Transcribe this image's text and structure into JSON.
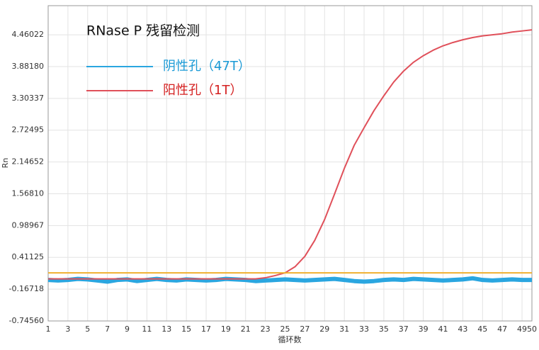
{
  "chart_data": {
    "type": "line",
    "title": "RNase P 残留检测",
    "x_label": "循环数",
    "y_label": "Rn",
    "x": [
      1,
      2,
      3,
      4,
      5,
      6,
      7,
      8,
      9,
      10,
      11,
      12,
      13,
      14,
      15,
      16,
      17,
      18,
      19,
      20,
      21,
      22,
      23,
      24,
      25,
      26,
      27,
      28,
      29,
      30,
      31,
      32,
      33,
      34,
      35,
      36,
      37,
      38,
      39,
      40,
      41,
      42,
      43,
      44,
      45,
      46,
      47,
      48,
      49,
      50
    ],
    "series": [
      {
        "name": "阴性孔（47T）",
        "color": "#2aa6e0",
        "values": [
          0.0,
          -0.01,
          0.0,
          0.02,
          0.01,
          -0.01,
          -0.03,
          0.0,
          0.01,
          -0.02,
          0.0,
          0.02,
          0.0,
          -0.01,
          0.01,
          0.0,
          -0.01,
          0.0,
          0.02,
          0.01,
          0.0,
          -0.02,
          -0.01,
          0.0,
          0.01,
          0.0,
          -0.01,
          0.0,
          0.01,
          0.02,
          0.0,
          -0.02,
          -0.03,
          -0.02,
          0.0,
          0.01,
          0.0,
          0.02,
          0.01,
          0.0,
          -0.01,
          0.0,
          0.01,
          0.03,
          0.0,
          -0.01,
          0.0,
          0.01,
          0.0,
          0.0
        ]
      },
      {
        "name": "阳性孔（1T）",
        "color": "#e0505a",
        "values": [
          0.02,
          0.02,
          0.02,
          0.02,
          0.02,
          0.02,
          0.02,
          0.02,
          0.02,
          0.02,
          0.02,
          0.02,
          0.02,
          0.02,
          0.02,
          0.02,
          0.02,
          0.02,
          0.02,
          0.02,
          0.02,
          0.02,
          0.04,
          0.08,
          0.13,
          0.24,
          0.43,
          0.72,
          1.1,
          1.56,
          2.03,
          2.45,
          2.77,
          3.08,
          3.35,
          3.6,
          3.8,
          3.96,
          4.08,
          4.18,
          4.26,
          4.32,
          4.37,
          4.41,
          4.44,
          4.46,
          4.48,
          4.51,
          4.53,
          4.55
        ]
      }
    ],
    "legend_label_colors": [
      "#1a9ad6",
      "#d42020"
    ],
    "threshold": 0.13,
    "threshold_color": "#f0b030",
    "xlim": [
      1,
      50
    ],
    "xticks": [
      1,
      3,
      5,
      7,
      9,
      11,
      13,
      15,
      17,
      19,
      21,
      23,
      25,
      27,
      29,
      31,
      33,
      35,
      37,
      39,
      41,
      43,
      45,
      47,
      49,
      50
    ],
    "ylim": [
      -0.7456,
      4.99
    ],
    "yticks": [
      {
        "value": -0.7456,
        "label": "-0.74560"
      },
      -0.16718,
      0.41125,
      0.98967,
      {
        "value": 1.5681,
        "label": "1.56810"
      },
      2.14652,
      2.72495,
      3.30337,
      {
        "value": 3.8818,
        "label": "3.88180"
      },
      4.46022
    ],
    "grid": true
  }
}
